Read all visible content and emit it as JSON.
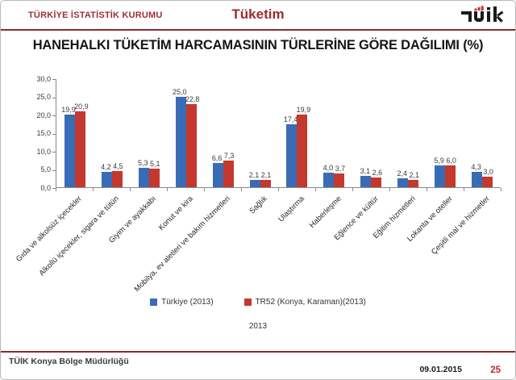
{
  "header": {
    "left_title": "TÜRKİYE İSTATİSTİK KURUMU",
    "center_title": "Tüketim",
    "logo_name": "TÜİK"
  },
  "slide_title": "HANEHALKI TÜKETİM HARCAMASININ TÜRLERİNE GÖRE DAĞILIMI (%)",
  "chart_data": {
    "type": "bar",
    "title": "HANEHALKI TÜKETİM HARCAMASININ TÜRLERİNE GÖRE DAĞILIMI (%)",
    "categories": [
      "Gıda ve alkolsüz içecekler",
      "Alkollü içecekler, sigara ve tütün",
      "Giyim ve ayakkabı",
      "Konut ve kira",
      "Mobilya, ev aletleri ve bakım hizmetleri",
      "Sağlık",
      "Ulaştırma",
      "Haberleşme",
      "Eğlence ve kültür",
      "Eğitim hizmetleri",
      "Lokanta ve oteller",
      "Çeşitli mal ve hizmetler"
    ],
    "series": [
      {
        "name": "Türkiye (2013)",
        "color": "#3a6cb5",
        "values": [
          19.9,
          4.2,
          5.3,
          25.0,
          6.6,
          2.1,
          17.4,
          4.0,
          3.1,
          2.4,
          5.9,
          4.3
        ]
      },
      {
        "name": "TR52 (Konya, Karaman)(2013)",
        "color": "#c5382d",
        "values": [
          20.9,
          4.5,
          5.1,
          22.8,
          7.3,
          2.1,
          19.9,
          3.7,
          2.6,
          2.1,
          6.0,
          3.0
        ]
      }
    ],
    "ylim": [
      0,
      30
    ],
    "ytick_step": 5,
    "ytick_labels": [
      "0,0",
      "5,0",
      "10,0",
      "15,0",
      "20,0",
      "25,0",
      "30,0"
    ],
    "decimal_separator": ",",
    "xlabel": "2013",
    "legend_position": "bottom",
    "grid": false
  },
  "footer": {
    "left": "TÜİK Konya Bölge Müdürlüğü",
    "date": "09.01.2015",
    "page": "25"
  }
}
